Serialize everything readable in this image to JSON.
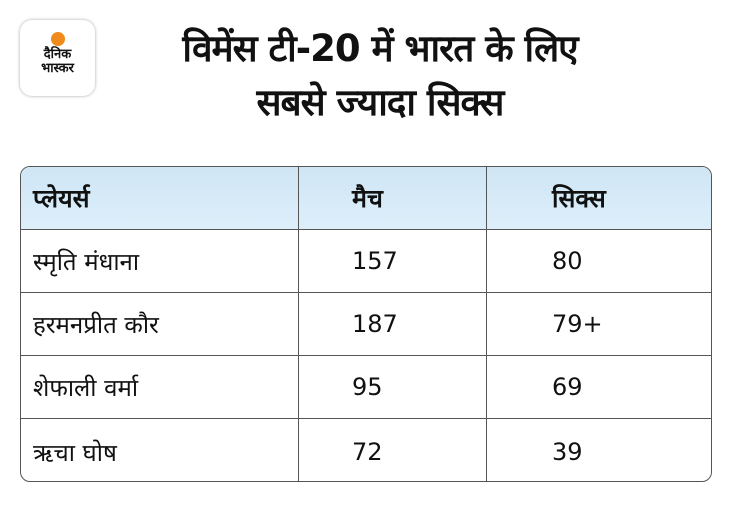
{
  "logo": {
    "line1": "दैनिक",
    "line2": "भास्कर",
    "accent": "#f08a1c"
  },
  "title": {
    "line1": "विमेंस टी-20 में भारत के लिए",
    "line2": "सबसे ज्यादा सिक्स"
  },
  "table": {
    "headers": [
      "प्लेयर्स",
      "मैच",
      "सिक्स"
    ],
    "header_color": "#cfe6f5",
    "rows": [
      [
        "स्मृति मंधाना",
        "157",
        "80"
      ],
      [
        "हरमनप्रीत कौर",
        "187",
        "79+"
      ],
      [
        "शेफाली वर्मा",
        "95",
        "69"
      ],
      [
        "ऋचा घोष",
        "72",
        "39"
      ]
    ]
  }
}
